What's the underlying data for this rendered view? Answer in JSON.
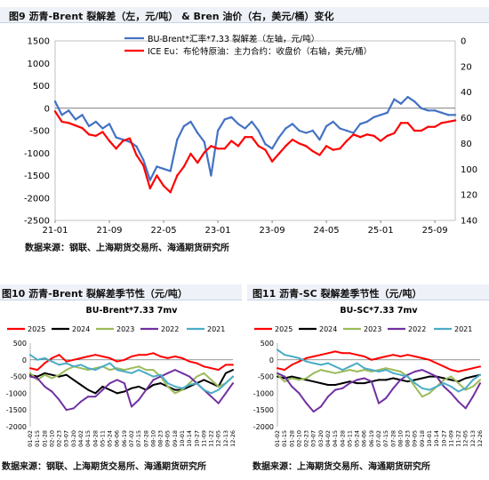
{
  "fig9": {
    "title": "图9   沥青-Brent 裂解差（左，元/吨） & Bren 油价（右，美元/桶）变化",
    "source": "数据来源：钢联、上海期货交易所、海通期货研究所"
  },
  "fig10": {
    "title": "图10   沥青-Brent 裂解差季节性（元/吨）",
    "source": "数据来源：钢联、上海期货交易所、海通期货研究所"
  },
  "fig11": {
    "title": "图11   沥青-SC 裂解差季节性（元/吨）",
    "source": "数据来源：上海期货交易所、海通期货研究所"
  },
  "colors": {
    "blue": "#4472c4",
    "red": "#ff0000",
    "black": "#000000",
    "green": "#9bbb59",
    "purple": "#7030a0",
    "cyan": "#4bacc6"
  },
  "chart_data": [
    {
      "type": "line",
      "legend_position": "top-center",
      "x": [
        "21-01",
        "21-09",
        "22-05",
        "23-01",
        "23-09",
        "24-05",
        "25-01",
        "25-09"
      ],
      "xlim": [
        "2021-01",
        "2025-12"
      ],
      "ylim_left": [
        -2500,
        1500
      ],
      "yticks_left": [
        "1500",
        "1000",
        "500",
        "0",
        "-500",
        "-1000",
        "-1500",
        "-2000",
        "-2500"
      ],
      "ylim_right": [
        0,
        140
      ],
      "y_right_reversed": true,
      "yticks_right": [
        "0",
        "20",
        "40",
        "60",
        "80",
        "100",
        "120",
        "140"
      ],
      "series": [
        {
          "name": "BU-Brent*汇率*7.33 裂解差（左轴，元/吨）",
          "axis": "left",
          "color": "blue",
          "points": [
            [
              "2021-01",
              150
            ],
            [
              "2021-02",
              -150
            ],
            [
              "2021-03",
              -50
            ],
            [
              "2021-04",
              -250
            ],
            [
              "2021-05",
              -150
            ],
            [
              "2021-06",
              -400
            ],
            [
              "2021-07",
              -300
            ],
            [
              "2021-08",
              -450
            ],
            [
              "2021-09",
              -350
            ],
            [
              "2021-10",
              -650
            ],
            [
              "2021-11",
              -700
            ],
            [
              "2021-12",
              -750
            ],
            [
              "2022-01",
              -850
            ],
            [
              "2022-02",
              -1150
            ],
            [
              "2022-03",
              -1600
            ],
            [
              "2022-04",
              -1300
            ],
            [
              "2022-05",
              -1350
            ],
            [
              "2022-06",
              -1400
            ],
            [
              "2022-07",
              -700
            ],
            [
              "2022-08",
              -400
            ],
            [
              "2022-09",
              -300
            ],
            [
              "2022-10",
              -550
            ],
            [
              "2022-11",
              -750
            ],
            [
              "2022-12",
              -1500
            ],
            [
              "2023-01",
              -500
            ],
            [
              "2023-02",
              -250
            ],
            [
              "2023-03",
              -200
            ],
            [
              "2023-04",
              -350
            ],
            [
              "2023-05",
              -450
            ],
            [
              "2023-06",
              -300
            ],
            [
              "2023-07",
              -500
            ],
            [
              "2023-08",
              -800
            ],
            [
              "2023-09",
              -900
            ],
            [
              "2023-10",
              -650
            ],
            [
              "2023-11",
              -450
            ],
            [
              "2023-12",
              -350
            ],
            [
              "2024-01",
              -500
            ],
            [
              "2024-02",
              -550
            ],
            [
              "2024-03",
              -500
            ],
            [
              "2024-04",
              -700
            ],
            [
              "2024-05",
              -400
            ],
            [
              "2024-06",
              -300
            ],
            [
              "2024-07",
              -450
            ],
            [
              "2024-08",
              -500
            ],
            [
              "2024-09",
              -550
            ],
            [
              "2024-10",
              -350
            ],
            [
              "2024-11",
              -300
            ],
            [
              "2024-12",
              -200
            ],
            [
              "2025-01",
              -150
            ],
            [
              "2025-02",
              -100
            ],
            [
              "2025-03",
              200
            ],
            [
              "2025-04",
              100
            ],
            [
              "2025-05",
              250
            ],
            [
              "2025-06",
              150
            ],
            [
              "2025-07",
              0
            ],
            [
              "2025-08",
              -50
            ],
            [
              "2025-09",
              -50
            ],
            [
              "2025-10",
              -100
            ],
            [
              "2025-11",
              -150
            ],
            [
              "2025-12",
              -150
            ]
          ]
        },
        {
          "name": "ICE Eu：布伦特原油：主力合约：收盘价（右轴，美元/桶）",
          "axis": "right",
          "color": "red",
          "points": [
            [
              "2021-01",
              55
            ],
            [
              "2021-02",
              63
            ],
            [
              "2021-03",
              64
            ],
            [
              "2021-04",
              66
            ],
            [
              "2021-05",
              68
            ],
            [
              "2021-06",
              73
            ],
            [
              "2021-07",
              74
            ],
            [
              "2021-08",
              71
            ],
            [
              "2021-09",
              78
            ],
            [
              "2021-10",
              84
            ],
            [
              "2021-11",
              78
            ],
            [
              "2021-12",
              76
            ],
            [
              "2022-01",
              89
            ],
            [
              "2022-02",
              97
            ],
            [
              "2022-03",
              115
            ],
            [
              "2022-04",
              105
            ],
            [
              "2022-05",
              113
            ],
            [
              "2022-06",
              118
            ],
            [
              "2022-07",
              105
            ],
            [
              "2022-08",
              98
            ],
            [
              "2022-09",
              88
            ],
            [
              "2022-10",
              95
            ],
            [
              "2022-11",
              87
            ],
            [
              "2022-12",
              82
            ],
            [
              "2023-01",
              84
            ],
            [
              "2023-02",
              84
            ],
            [
              "2023-03",
              78
            ],
            [
              "2023-04",
              82
            ],
            [
              "2023-05",
              75
            ],
            [
              "2023-06",
              75
            ],
            [
              "2023-07",
              82
            ],
            [
              "2023-08",
              85
            ],
            [
              "2023-09",
              94
            ],
            [
              "2023-10",
              88
            ],
            [
              "2023-11",
              82
            ],
            [
              "2023-12",
              77
            ],
            [
              "2024-01",
              80
            ],
            [
              "2024-02",
              82
            ],
            [
              "2024-03",
              86
            ],
            [
              "2024-04",
              89
            ],
            [
              "2024-05",
              82
            ],
            [
              "2024-06",
              85
            ],
            [
              "2024-07",
              84
            ],
            [
              "2024-08",
              78
            ],
            [
              "2024-09",
              73
            ],
            [
              "2024-10",
              75
            ],
            [
              "2024-11",
              73
            ],
            [
              "2024-12",
              74
            ],
            [
              "2025-01",
              78
            ],
            [
              "2025-02",
              74
            ],
            [
              "2025-03",
              72
            ],
            [
              "2025-04",
              64
            ],
            [
              "2025-05",
              64
            ],
            [
              "2025-06",
              70
            ],
            [
              "2025-07",
              70
            ],
            [
              "2025-08",
              67
            ],
            [
              "2025-09",
              67
            ],
            [
              "2025-10",
              64
            ],
            [
              "2025-11",
              63
            ],
            [
              "2025-12",
              62
            ]
          ]
        }
      ]
    },
    {
      "type": "line",
      "title": "BU-Brent*7.33 7mv",
      "legend_position": "top",
      "ylim": [
        -2000,
        500
      ],
      "yticks": [
        "500",
        "0",
        "-500",
        "-1000",
        "-1500",
        "-2000"
      ],
      "x_ticks": [
        "01-02",
        "01-15",
        "01-28",
        "02-10",
        "02-23",
        "03-07",
        "03-20",
        "04-02",
        "04-15",
        "04-28",
        "05-11",
        "05-24",
        "06-06",
        "06-19",
        "07-02",
        "07-15",
        "07-28",
        "08-10",
        "08-23",
        "09-05",
        "09-18",
        "10-01",
        "10-14",
        "10-27",
        "11-09",
        "11-22",
        "12-05",
        "12-13",
        "12-26"
      ],
      "series": [
        {
          "name": "2025",
          "color": "red",
          "values": [
            -250,
            -300,
            -100,
            50,
            150,
            -50,
            0,
            50,
            100,
            150,
            100,
            50,
            -50,
            0,
            100,
            150,
            150,
            200,
            100,
            50,
            100,
            50,
            -50,
            -100,
            -200,
            -250,
            -300,
            -150,
            -150
          ]
        },
        {
          "name": "2024",
          "color": "black",
          "values": [
            -450,
            -500,
            -400,
            -450,
            -500,
            -450,
            -600,
            -750,
            -900,
            -1000,
            -800,
            -900,
            -1000,
            -950,
            -850,
            -800,
            -900,
            -750,
            -700,
            -800,
            -900,
            -900,
            -800,
            -700,
            -600,
            -700,
            -800,
            -400,
            -300
          ]
        },
        {
          "name": "2023",
          "color": "green",
          "values": [
            -400,
            -600,
            -450,
            -550,
            -450,
            -300,
            -200,
            -250,
            -300,
            -250,
            -200,
            -300,
            -250,
            -300,
            -250,
            -200,
            -300,
            -300,
            -500,
            -800,
            -1000,
            -900,
            -700,
            -500,
            -400,
            -600,
            -800,
            -700,
            -500
          ]
        },
        {
          "name": "2022",
          "color": "purple",
          "values": [
            -500,
            -550,
            -800,
            -950,
            -1200,
            -1500,
            -1450,
            -1250,
            -1100,
            -1100,
            -900,
            -700,
            -600,
            -700,
            -1400,
            -1200,
            -900,
            -600,
            -500,
            -400,
            -300,
            -400,
            -500,
            -700,
            -900,
            -1100,
            -1300,
            -1000,
            -700
          ]
        },
        {
          "name": "2021",
          "color": "cyan",
          "values": [
            150,
            0,
            50,
            -50,
            -150,
            -100,
            -200,
            -150,
            -250,
            -300,
            -200,
            -100,
            -300,
            -350,
            -400,
            -300,
            -400,
            -500,
            -450,
            -700,
            -800,
            -850,
            -750,
            -700,
            -900,
            -1000,
            -900,
            -700,
            -500
          ]
        }
      ]
    },
    {
      "type": "line",
      "title": "BU-SC*7.33 7mv",
      "legend_position": "top",
      "ylim": [
        -2000,
        500
      ],
      "yticks": [
        "500",
        "0",
        "-500",
        "-1000",
        "-1500",
        "-2000"
      ],
      "x_ticks": [
        "01-02",
        "01-15",
        "01-28",
        "02-10",
        "02-23",
        "03-07",
        "03-20",
        "04-02",
        "04-15",
        "04-28",
        "05-11",
        "05-24",
        "06-06",
        "06-19",
        "07-02",
        "07-15",
        "07-28",
        "08-10",
        "08-23",
        "09-05",
        "09-18",
        "10-01",
        "10-14",
        "10-27",
        "11-09",
        "11-22",
        "12-05",
        "12-13",
        "12-26"
      ],
      "series": [
        {
          "name": "2025",
          "color": "red",
          "values": [
            -250,
            -300,
            -150,
            -50,
            50,
            100,
            150,
            200,
            250,
            200,
            200,
            150,
            100,
            0,
            50,
            100,
            150,
            100,
            150,
            100,
            50,
            0,
            -100,
            -200,
            -300,
            -350,
            -300,
            -250,
            -200
          ]
        },
        {
          "name": "2024",
          "color": "black",
          "values": [
            -500,
            -550,
            -500,
            -550,
            -600,
            -650,
            -700,
            -750,
            -750,
            -700,
            -650,
            -700,
            -700,
            -650,
            -600,
            -600,
            -550,
            -600,
            -650,
            -600,
            -550,
            -500,
            -500,
            -550,
            -600,
            -650,
            -550,
            -500,
            -450
          ]
        },
        {
          "name": "2023",
          "color": "green",
          "values": [
            -450,
            -650,
            -550,
            -600,
            -550,
            -400,
            -300,
            -350,
            -400,
            -350,
            -300,
            -350,
            -300,
            -350,
            -300,
            -250,
            -300,
            -350,
            -500,
            -800,
            -1100,
            -1000,
            -800,
            -600,
            -500,
            -700,
            -900,
            -800,
            -600
          ]
        },
        {
          "name": "2022",
          "color": "purple",
          "values": [
            -400,
            -500,
            -800,
            -1000,
            -1300,
            -1550,
            -1400,
            -1100,
            -900,
            -850,
            -700,
            -600,
            -550,
            -650,
            -1300,
            -1150,
            -850,
            -600,
            -450,
            -350,
            -300,
            -400,
            -500,
            -800,
            -1000,
            -1250,
            -1450,
            -1100,
            -700
          ]
        },
        {
          "name": "2021",
          "color": "cyan",
          "values": [
            300,
            150,
            100,
            50,
            -50,
            -100,
            -150,
            -100,
            -200,
            -300,
            -200,
            -100,
            -250,
            -300,
            -350,
            -300,
            -400,
            -450,
            -500,
            -700,
            -850,
            -900,
            -800,
            -700,
            -800,
            -950,
            -850,
            -600,
            -450
          ]
        }
      ]
    }
  ]
}
